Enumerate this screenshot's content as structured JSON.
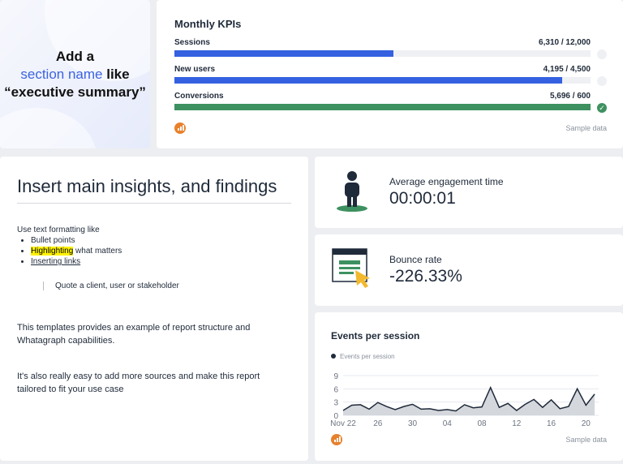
{
  "section": {
    "line1": "Add a",
    "highlight": "section name",
    "line2_rest": " like",
    "line3": "“executive summary”"
  },
  "kpis": {
    "title": "Monthly KPIs",
    "items": [
      {
        "label": "Sessions",
        "value": "6,310 / 12,000",
        "progress": 0.526,
        "color": "#3561e0",
        "complete": false
      },
      {
        "label": "New users",
        "value": "4,195 / 4,500",
        "progress": 0.932,
        "color": "#3561e0",
        "complete": false
      },
      {
        "label": "Conversions",
        "value": "5,696 / 600",
        "progress": 1.0,
        "color": "#3d9160",
        "complete": true
      }
    ],
    "sample": "Sample data",
    "source_icon": "bar-chart-icon"
  },
  "insights": {
    "title": "Insert main insights, and findings",
    "intro": "Use text formatting like",
    "bullets": [
      "Bullet points",
      "Highlighting",
      " what matters",
      "Inserting links"
    ],
    "quote": "Quote a client, user or stakeholder",
    "para1": "This templates provides an example of report structure and Whatagraph capabilities.",
    "para2": "It's also really easy to add more sources and make this report tailored to fit your use case"
  },
  "engagement": {
    "label": "Average engagement time",
    "value": "00:00:01",
    "icon": "person-icon"
  },
  "bounce": {
    "label": "Bounce rate",
    "value": "-226.33%",
    "icon": "browser-cursor-icon"
  },
  "events": {
    "title": "Events per session",
    "sample": "Sample data",
    "chart_data": {
      "type": "area",
      "series": [
        {
          "name": "Events per session",
          "values": [
            1.1,
            2.3,
            2.4,
            1.4,
            2.9,
            2.0,
            1.3,
            2.0,
            2.5,
            1.4,
            1.5,
            1.1,
            1.3,
            1.0,
            2.4,
            1.7,
            1.9,
            6.3,
            1.8,
            2.7,
            1.1,
            2.5,
            3.6,
            1.8,
            3.5,
            1.5,
            2.0,
            6.0,
            2.3,
            4.8
          ]
        }
      ],
      "x_start": "Nov 22",
      "x_end": "Dec 21",
      "xticks": [
        "Nov 22",
        "26",
        "30",
        "04",
        "08",
        "12",
        "16",
        "20"
      ],
      "yticks": [
        0,
        3,
        6,
        9
      ],
      "ylim": [
        0,
        9
      ],
      "grid": true,
      "legend": "top-left",
      "line_color": "#1f2a3a",
      "fill_color": "#d4d7dc"
    }
  }
}
